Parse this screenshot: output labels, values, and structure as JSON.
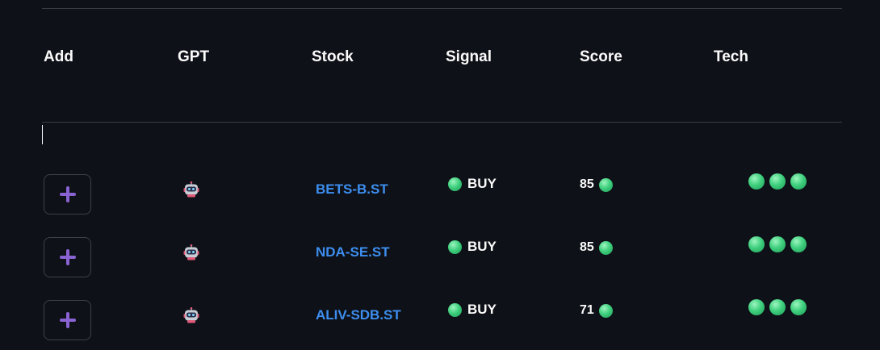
{
  "table": {
    "columns": [
      "Add",
      "GPT",
      "Stock",
      "Signal",
      "Score",
      "Tech"
    ],
    "rows": [
      {
        "add_icon": "plus-icon",
        "gpt_icon": "robot-icon",
        "stock": "BETS-B.ST",
        "signal": "BUY",
        "signal_color": "#3fd07e",
        "score": "85",
        "tech_dots": [
          "#3fd07e",
          "#3fd07e",
          "#3fd07e"
        ]
      },
      {
        "add_icon": "plus-icon",
        "gpt_icon": "robot-icon",
        "stock": "NDA-SE.ST",
        "signal": "BUY",
        "signal_color": "#3fd07e",
        "score": "85",
        "tech_dots": [
          "#3fd07e",
          "#3fd07e",
          "#3fd07e"
        ]
      },
      {
        "add_icon": "plus-icon",
        "gpt_icon": "robot-icon",
        "stock": "ALIV-SDB.ST",
        "signal": "BUY",
        "signal_color": "#3fd07e",
        "score": "71",
        "tech_dots": [
          "#3fd07e",
          "#3fd07e",
          "#3fd07e"
        ]
      }
    ]
  },
  "colors": {
    "background": "#0e1117",
    "link": "#3d8ef0",
    "accent_purple": "#8a63d2",
    "positive": "#3fd07e"
  }
}
